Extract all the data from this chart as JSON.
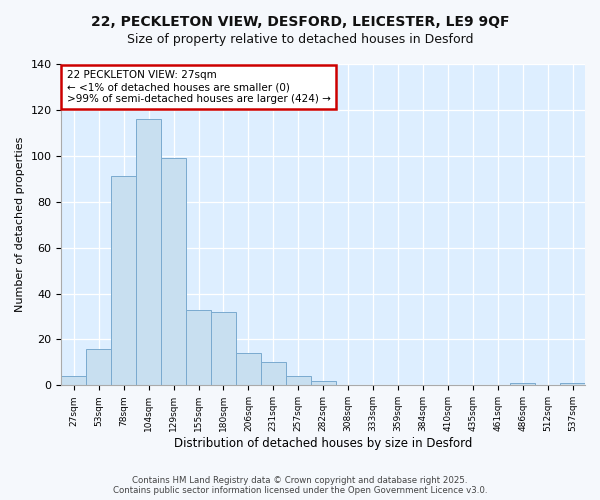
{
  "title_line1": "22, PECKLETON VIEW, DESFORD, LEICESTER, LE9 9QF",
  "title_line2": "Size of property relative to detached houses in Desford",
  "xlabel": "Distribution of detached houses by size in Desford",
  "ylabel": "Number of detached properties",
  "bar_color": "#c8dff0",
  "bar_edge_color": "#7aaacf",
  "categories": [
    "27sqm",
    "53sqm",
    "78sqm",
    "104sqm",
    "129sqm",
    "155sqm",
    "180sqm",
    "206sqm",
    "231sqm",
    "257sqm",
    "282sqm",
    "308sqm",
    "333sqm",
    "359sqm",
    "384sqm",
    "410sqm",
    "435sqm",
    "461sqm",
    "486sqm",
    "512sqm",
    "537sqm"
  ],
  "values": [
    4,
    16,
    91,
    116,
    99,
    33,
    32,
    14,
    10,
    4,
    2,
    0,
    0,
    0,
    0,
    0,
    0,
    0,
    1,
    0,
    1
  ],
  "ylim": [
    0,
    140
  ],
  "yticks": [
    0,
    20,
    40,
    60,
    80,
    100,
    120,
    140
  ],
  "annotation_title": "22 PECKLETON VIEW: 27sqm",
  "annotation_line2": "← <1% of detached houses are smaller (0)",
  "annotation_line3": ">99% of semi-detached houses are larger (424) →",
  "annotation_box_color": "#ffffff",
  "annotation_edge_color": "#cc0000",
  "plot_bg_color": "#ddeeff",
  "fig_bg_color": "#f5f8fc",
  "grid_color": "#ffffff",
  "footer_line1": "Contains HM Land Registry data © Crown copyright and database right 2025.",
  "footer_line2": "Contains public sector information licensed under the Open Government Licence v3.0."
}
